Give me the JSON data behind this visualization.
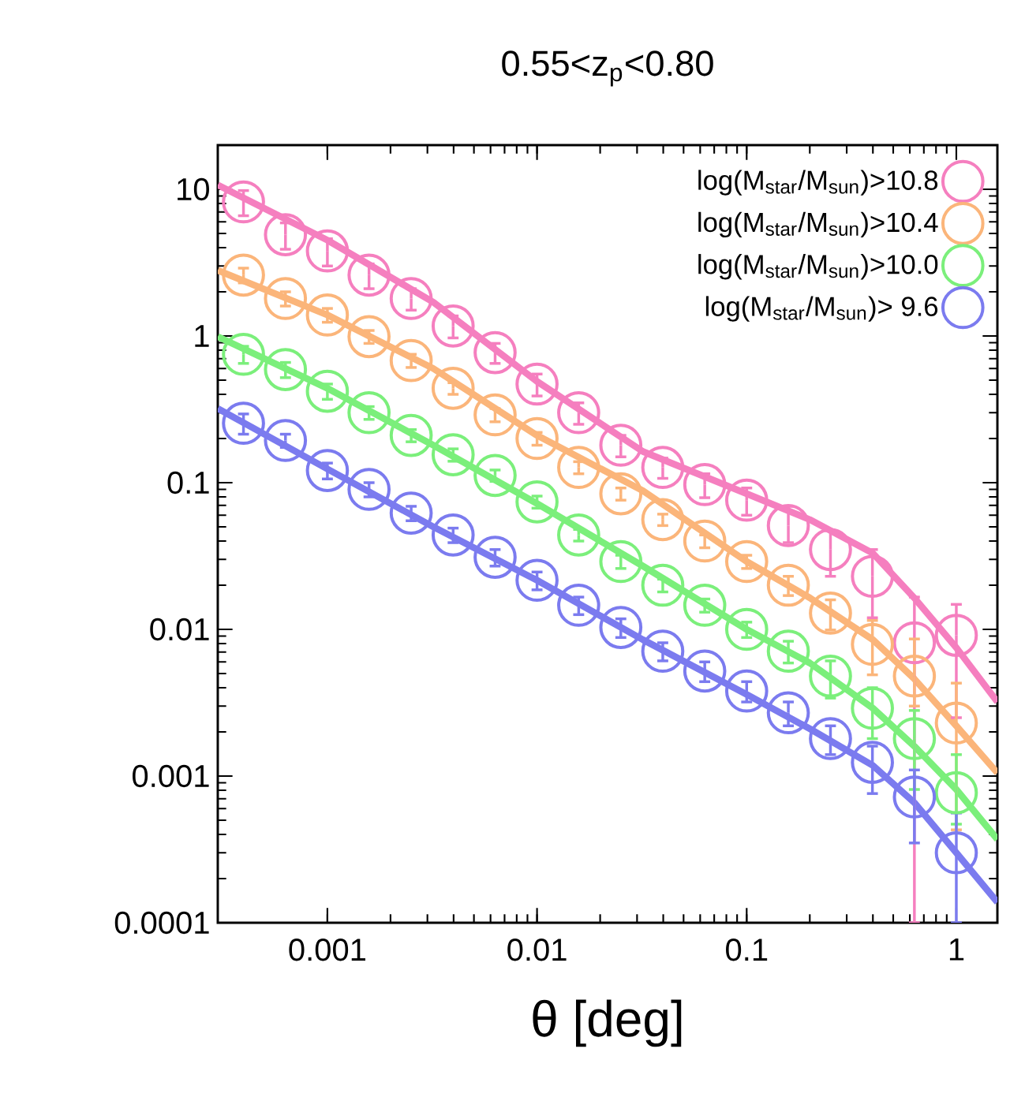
{
  "chart_data": {
    "type": "scatter",
    "title": "0.55<z$_{p}$<0.80",
    "xlabel": "θ [deg]",
    "x": [
      0.000398,
      0.000631,
      0.001,
      0.00158,
      0.00251,
      0.00398,
      0.00631,
      0.01,
      0.0158,
      0.0251,
      0.0398,
      0.0631,
      0.1,
      0.158,
      0.251,
      0.398,
      0.631,
      1.0
    ],
    "log": "xy",
    "xlim": [
      0.0003,
      1.57
    ],
    "ylim": [
      0.0001,
      20
    ],
    "xticks": [
      0.001,
      0.01,
      0.1,
      1
    ],
    "yticks": [
      0.0001,
      0.001,
      0.01,
      0.1,
      1,
      10
    ],
    "legend": "top right",
    "series": [
      {
        "name": "log(M$_{star}$/M$_{sun}$)>10.8",
        "color": "#f57fbf",
        "marker": "circle",
        "values": [
          8.2,
          4.9,
          3.8,
          2.6,
          1.8,
          1.17,
          0.77,
          0.47,
          0.3,
          0.18,
          0.127,
          0.097,
          0.076,
          0.051,
          0.035,
          0.023,
          0.0081,
          0.0091
        ],
        "errors": [
          1.6,
          1.0,
          0.8,
          0.5,
          0.3,
          0.2,
          0.12,
          0.08,
          0.05,
          0.03,
          0.02,
          0.018,
          0.016,
          [
            0.039,
            0.069
          ],
          0.012,
          [
            0.012,
            0.035
          ],
          [
            0.0001,
            0.0166
          ],
          [
            0.0025,
            0.0148
          ]
        ]
      },
      {
        "name": "log(M$_{star}$/M$_{sun}$)>10.4",
        "color": "#fbb57a",
        "marker": "circle",
        "values": [
          2.6,
          1.8,
          1.39,
          0.99,
          0.68,
          0.44,
          0.29,
          0.2,
          0.127,
          0.084,
          0.056,
          0.04,
          0.029,
          0.02,
          0.0129,
          0.0079,
          0.0048,
          0.0023
        ],
        "errors": [
          0.3,
          0.2,
          0.15,
          0.1,
          0.07,
          0.04,
          0.03,
          0.02,
          0.012,
          0.008,
          0.005,
          0.004,
          0.003,
          0.003,
          0.003,
          [
            0.0049,
            0.0115
          ],
          [
            0.003,
            0.0086
          ],
          [
            0.00043,
            0.0043
          ]
        ]
      },
      {
        "name": "log(M$_{star}$/M$_{sun}$)>10.0",
        "color": "#7bef7b",
        "marker": "circle",
        "values": [
          0.75,
          0.59,
          0.42,
          0.3,
          0.21,
          0.155,
          0.112,
          0.074,
          0.044,
          0.029,
          0.02,
          0.0146,
          0.01,
          0.0071,
          0.0048,
          0.0029,
          0.0018,
          0.00077
        ],
        "errors": [
          0.1,
          0.07,
          0.05,
          0.03,
          0.02,
          0.015,
          0.01,
          0.007,
          0.004,
          0.003,
          0.002,
          0.0015,
          0.0012,
          0.0012,
          [
            0.0034,
            0.0061
          ],
          [
            0.0018,
            0.004
          ],
          [
            0.00081,
            0.0028
          ],
          [
            0.00047,
            0.0014
          ]
        ]
      },
      {
        "name": "log(M$_{star}$/M$_{sun}$)> 9.6",
        "color": "#7b7bef",
        "marker": "circle",
        "values": [
          0.254,
          0.194,
          0.121,
          0.09,
          0.062,
          0.044,
          0.031,
          0.0216,
          0.0146,
          0.0103,
          0.0071,
          0.0052,
          0.0038,
          0.0027,
          0.0018,
          0.00124,
          0.00072,
          0.0003
        ],
        "errors": [
          0.04,
          0.02,
          0.015,
          0.01,
          0.007,
          0.005,
          0.004,
          0.003,
          0.002,
          0.0015,
          0.001,
          0.0008,
          0.0006,
          0.0005,
          0.0004,
          [
            0.00076,
            0.0016
          ],
          [
            0.00035,
            0.0011
          ],
          [
            0.0001,
            0.00056
          ]
        ]
      },
      {
        "type": "line",
        "color": "#f57fbf",
        "x": [
          0.0003,
          0.001,
          0.0032,
          0.01,
          0.032,
          0.1,
          0.2,
          0.4,
          0.63,
          1.0,
          1.57
        ],
        "values": [
          10.7,
          4.5,
          1.7,
          0.49,
          0.163,
          0.084,
          0.056,
          0.033,
          0.0164,
          0.0075,
          0.0032
        ]
      },
      {
        "type": "line",
        "color": "#fbb57a",
        "x": [
          0.0003,
          0.001,
          0.0032,
          0.01,
          0.032,
          0.1,
          0.2,
          0.4,
          0.63,
          1.0,
          1.57
        ],
        "values": [
          2.8,
          1.39,
          0.6,
          0.21,
          0.088,
          0.029,
          0.0164,
          0.0085,
          0.0046,
          0.0022,
          0.00105
        ]
      },
      {
        "type": "line",
        "color": "#7bef7b",
        "x": [
          0.0003,
          0.001,
          0.0032,
          0.01,
          0.032,
          0.1,
          0.2,
          0.4,
          0.63,
          1.0,
          1.57
        ],
        "values": [
          0.99,
          0.44,
          0.18,
          0.072,
          0.027,
          0.01,
          0.0059,
          0.0029,
          0.0016,
          0.00081,
          0.00037
        ]
      },
      {
        "type": "line",
        "color": "#7b7bef",
        "x": [
          0.0003,
          0.001,
          0.0032,
          0.01,
          0.032,
          0.1,
          0.2,
          0.4,
          0.63,
          1.0,
          1.57
        ],
        "values": [
          0.32,
          0.124,
          0.05,
          0.0216,
          0.0085,
          0.0036,
          0.0021,
          0.00118,
          0.00066,
          0.0003,
          0.000138
        ]
      }
    ]
  }
}
